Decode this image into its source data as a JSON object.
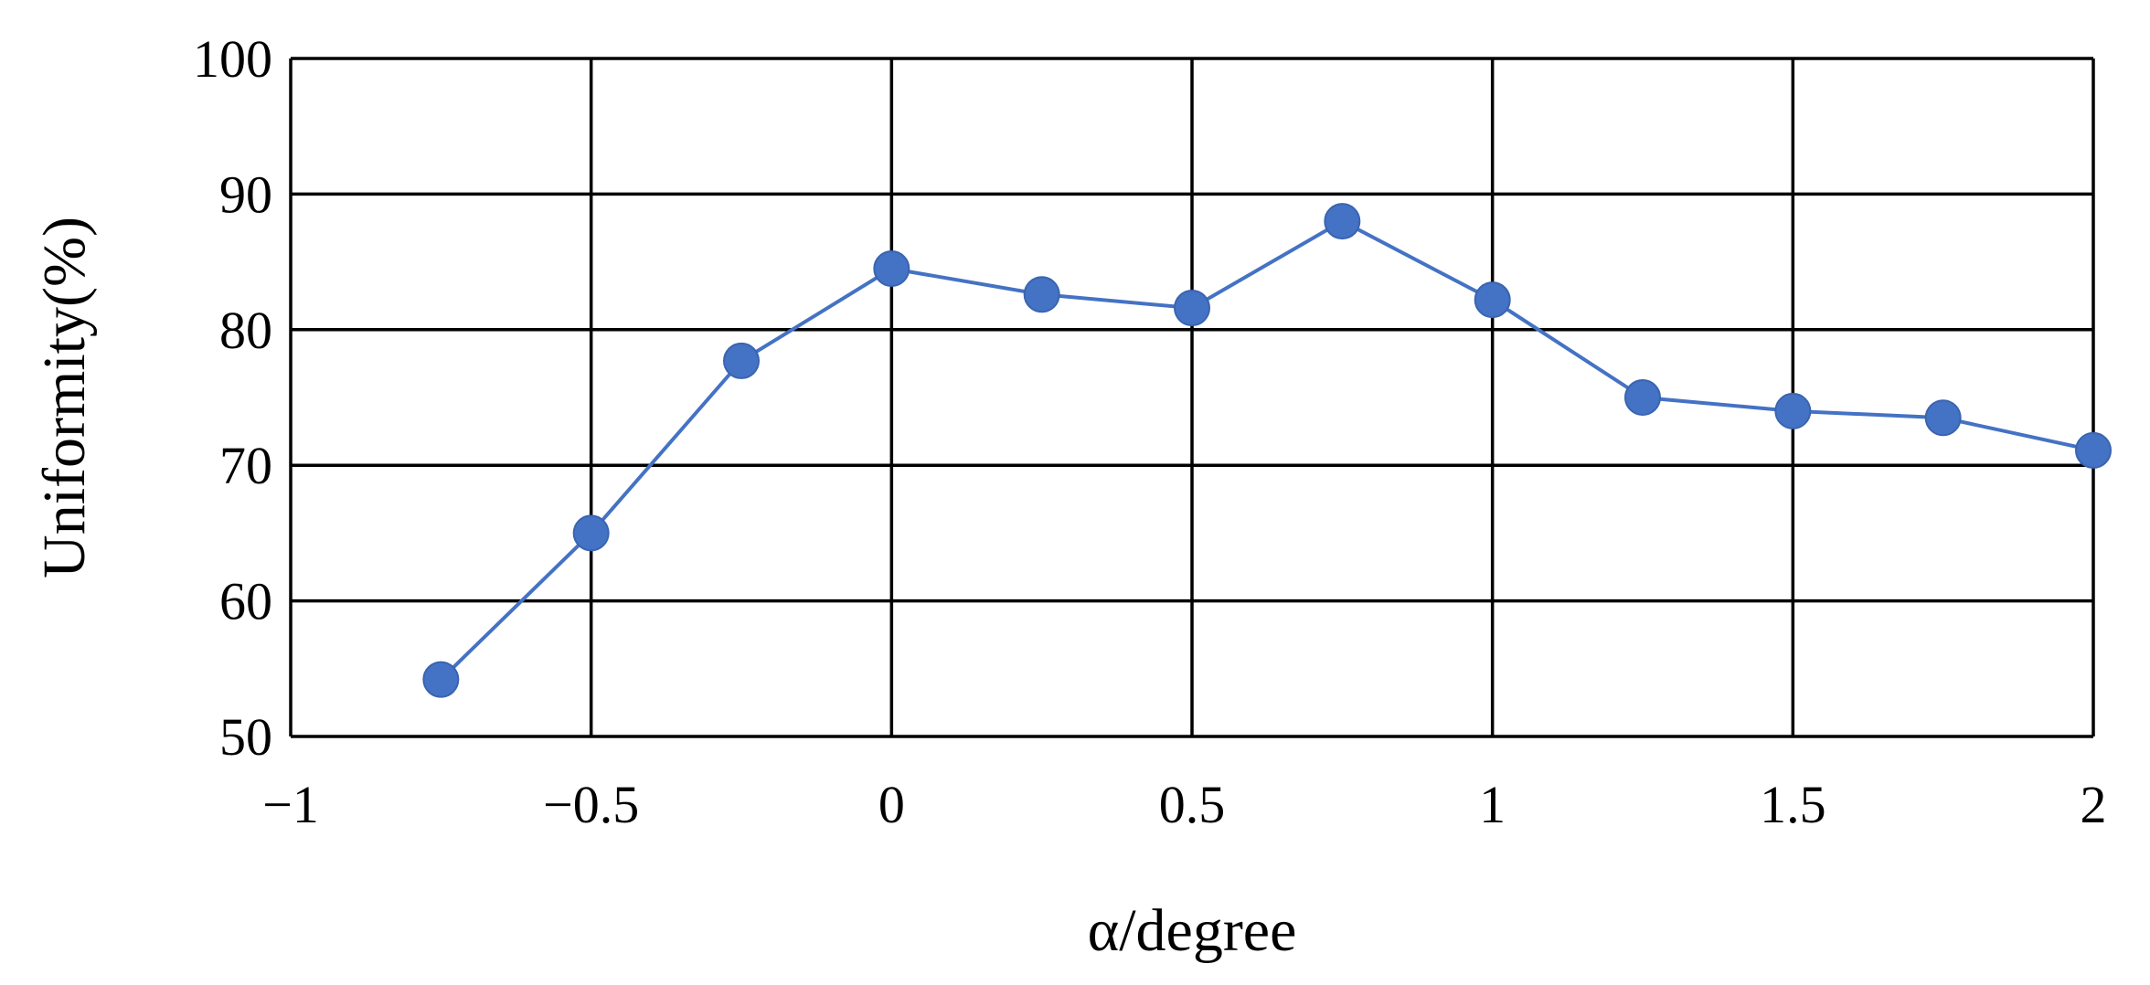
{
  "chart_data": {
    "type": "line",
    "xlabel": "α/degree",
    "ylabel": "Uniformity(%)",
    "xlim": [
      -1,
      2
    ],
    "ylim": [
      50,
      100
    ],
    "x_ticks": [
      -1,
      -0.5,
      0,
      0.5,
      1,
      1.5,
      2
    ],
    "x_tick_labels": [
      "−1",
      "−0.5",
      "0",
      "0.5",
      "1",
      "1.5",
      "2"
    ],
    "y_ticks": [
      50,
      60,
      70,
      80,
      90,
      100
    ],
    "y_tick_labels": [
      "50",
      "60",
      "70",
      "80",
      "90",
      "100"
    ],
    "grid": true,
    "legend": "none",
    "series": [
      {
        "color": "#4472C4",
        "marker": "circle",
        "x": [
          -0.75,
          -0.5,
          -0.25,
          0,
          0.25,
          0.5,
          0.75,
          1,
          1.25,
          1.5,
          1.75,
          2
        ],
        "y": [
          54.2,
          65.0,
          77.7,
          84.5,
          82.6,
          81.6,
          88.0,
          82.2,
          75.0,
          74.0,
          73.5,
          71.1
        ]
      }
    ]
  }
}
